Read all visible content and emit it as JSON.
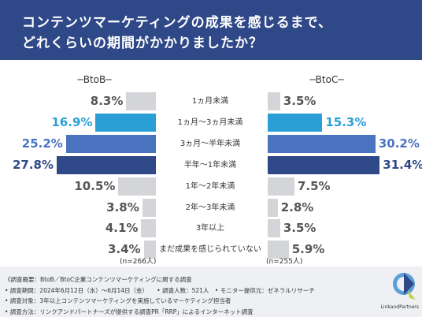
{
  "title": {
    "line1": "コンテンツマーケティングの成果を感じるまで、",
    "line2": "どれくらいの期間がかかりましたか？"
  },
  "chart_data": {
    "type": "bar",
    "categories": [
      "1ヵ月未満",
      "1ヵ月〜3ヵ月未満",
      "3ヵ月〜半年未満",
      "半年〜1年未満",
      "1年〜2年未満",
      "2年〜3年未満",
      "3年以上",
      "まだ成果を感じられていない"
    ],
    "series": [
      {
        "name": "BtoB",
        "label": "─BtoB─",
        "values": [
          8.3,
          16.9,
          25.2,
          27.8,
          10.5,
          3.8,
          4.1,
          3.4
        ],
        "n_label": "(n=266人)"
      },
      {
        "name": "BtoC",
        "label": "─BtoC─",
        "values": [
          3.5,
          15.3,
          30.2,
          31.4,
          7.5,
          2.8,
          3.5,
          5.9
        ],
        "n_label": "(n=255人)"
      }
    ],
    "value_labels": {
      "BtoB": [
        "8.3%",
        "16.9%",
        "25.2%",
        "27.8%",
        "10.5%",
        "3.8%",
        "4.1%",
        "3.4%"
      ],
      "BtoC": [
        "3.5%",
        "15.3%",
        "30.2%",
        "31.4%",
        "7.5%",
        "2.8%",
        "3.5%",
        "5.9%"
      ]
    },
    "highlight_index": [
      1,
      2,
      3
    ],
    "colors": {
      "gray": "#d3d5d8",
      "highlight": [
        "#2a9fd6",
        "#4a73c0",
        "#2f4887"
      ],
      "text_gray": "#555555"
    },
    "xlim": [
      0,
      32
    ]
  },
  "footer": {
    "lines": [
      "《調査概要：BtoB／BtoC企業コンテンツマーケティングに関する調査",
      "• 調査期間：2024年6月12日（水）〜6月14日（金）　　• 調査人数：521人　• モニター提供元：ゼネラルリサーチ",
      "• 調査対象：3年以上コンテンツマーケティングを実施しているマーケティング担当者",
      "• 調査方法：リンクアンドパートナーズが提供する調査PR「RRP」によるインターネット調査"
    ],
    "logo_text": "LinkandPartners"
  }
}
